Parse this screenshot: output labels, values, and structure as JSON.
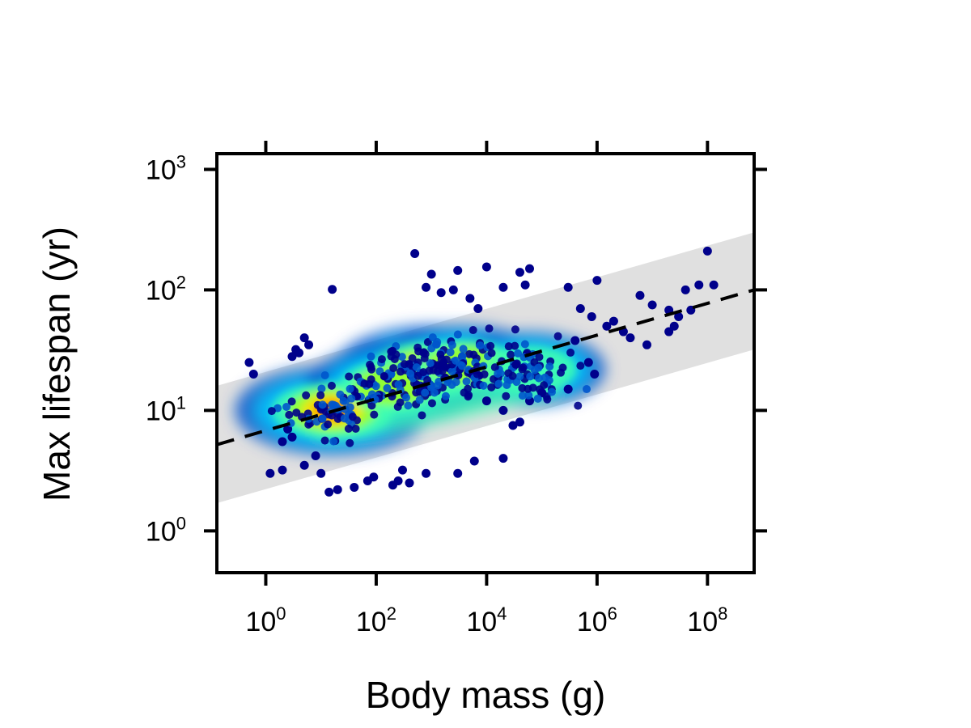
{
  "chart_data": {
    "type": "scatter",
    "xlabel": "Body mass (g)",
    "ylabel": "Max lifespan (yr)",
    "xscale": "log10",
    "yscale": "log10",
    "xlim": [
      0.13,
      700000000
    ],
    "ylim": [
      0.45,
      1350
    ],
    "grid": false,
    "legend": "none",
    "xticks": [
      {
        "value": 1,
        "base": "10",
        "exp": "0"
      },
      {
        "value": 100,
        "base": "10",
        "exp": "2"
      },
      {
        "value": 10000,
        "base": "10",
        "exp": "4"
      },
      {
        "value": 1000000,
        "base": "10",
        "exp": "6"
      },
      {
        "value": 100000000,
        "base": "10",
        "exp": "8"
      }
    ],
    "yticks": [
      {
        "value": 1,
        "base": "10",
        "exp": "0"
      },
      {
        "value": 10,
        "base": "10",
        "exp": "1"
      },
      {
        "value": 100,
        "base": "10",
        "exp": "2"
      },
      {
        "value": 1000,
        "base": "10",
        "exp": "3"
      }
    ],
    "fit_line": {
      "style": "dashed",
      "color": "#000000",
      "points": [
        [
          0.13,
          5.2
        ],
        [
          700000000,
          100
        ]
      ]
    },
    "band": {
      "color": "#e0e0e0",
      "lower": [
        [
          0.13,
          1.7
        ],
        [
          700000000,
          32
        ]
      ],
      "upper": [
        [
          0.13,
          16
        ],
        [
          700000000,
          300
        ]
      ]
    },
    "color_scale": [
      "#00008b",
      "#0055cc",
      "#00c8ff",
      "#40ffb0",
      "#a0ff20",
      "#ffe000",
      "#ff8800",
      "#ff2000"
    ],
    "density_clusters": [
      {
        "x": 16,
        "y": 10,
        "density": 1.0
      },
      {
        "x": 900,
        "y": 22,
        "density": 0.92
      },
      {
        "x": 200,
        "y": 16,
        "density": 0.7
      },
      {
        "x": 4000,
        "y": 24,
        "density": 0.6
      },
      {
        "x": 60000,
        "y": 22,
        "density": 0.45
      }
    ],
    "points": [
      [
        0.5,
        25
      ],
      [
        0.6,
        20
      ],
      [
        1.2,
        3.0
      ],
      [
        2,
        3.2
      ],
      [
        3,
        28
      ],
      [
        3.5,
        32
      ],
      [
        5,
        40
      ],
      [
        16,
        101
      ],
      [
        14,
        2.1
      ],
      [
        20,
        2.2
      ],
      [
        40,
        2.3
      ],
      [
        70,
        2.6
      ],
      [
        90,
        2.8
      ],
      [
        200,
        2.4
      ],
      [
        250,
        2.6
      ],
      [
        400,
        2.5
      ],
      [
        300,
        3.2
      ],
      [
        800,
        3.0
      ],
      [
        3000,
        3.0
      ],
      [
        20000,
        4.0
      ],
      [
        6000,
        3.8
      ],
      [
        500,
        200
      ],
      [
        1000,
        135
      ],
      [
        1500,
        95
      ],
      [
        2500,
        100
      ],
      [
        3000,
        145
      ],
      [
        10000,
        155
      ],
      [
        800,
        105
      ],
      [
        5000,
        85
      ],
      [
        7000,
        70
      ],
      [
        20000,
        105
      ],
      [
        50000,
        110
      ],
      [
        60000,
        150
      ],
      [
        40000,
        140
      ],
      [
        300000,
        105
      ],
      [
        1000000,
        120
      ],
      [
        6000000,
        90
      ],
      [
        10000000,
        75
      ],
      [
        20000000,
        68
      ],
      [
        40000000,
        100
      ],
      [
        70000000,
        110
      ],
      [
        100000000,
        210
      ],
      [
        130000000,
        110
      ],
      [
        30000000,
        60
      ],
      [
        50000000,
        68
      ],
      [
        2000000,
        55
      ],
      [
        3000000,
        45
      ],
      [
        4000000,
        40
      ],
      [
        800000,
        60
      ],
      [
        500000,
        70
      ],
      [
        1500000,
        50
      ],
      [
        8000000,
        35
      ],
      [
        20000000,
        45
      ],
      [
        25000000,
        50
      ],
      [
        400000,
        38
      ],
      [
        700000,
        25
      ],
      [
        900000,
        20
      ],
      [
        300000,
        15
      ],
      [
        100000,
        14
      ],
      [
        60000,
        12
      ],
      [
        20000,
        10
      ],
      [
        10000,
        12
      ],
      [
        40000,
        8
      ],
      [
        30000,
        7.5
      ],
      [
        4,
        30
      ],
      [
        6,
        35
      ],
      [
        2.5,
        7
      ],
      [
        3,
        6
      ],
      [
        2,
        5.5
      ],
      [
        5,
        3.5
      ],
      [
        10,
        3.0
      ],
      [
        8,
        4.2
      ]
    ]
  }
}
